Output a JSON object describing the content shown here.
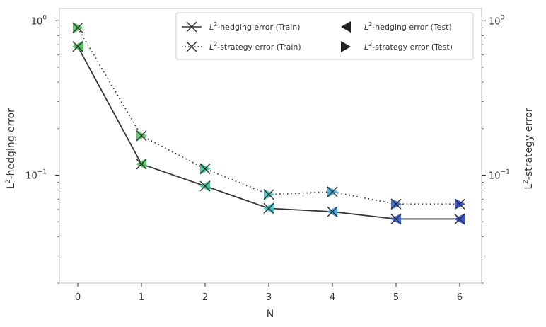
{
  "chart_data": {
    "type": "line",
    "title": "",
    "xlabel": "N",
    "ylabel_left": "L2-hedging error",
    "ylabel_right": "L2-strategy error",
    "y_scale": "log",
    "ylim": [
      0.02,
      1.2
    ],
    "x_ticks": [
      "0",
      "1",
      "2",
      "3",
      "4",
      "5",
      "6"
    ],
    "y_tick_labels": {
      "major_1": "10",
      "major_1_exp": "0",
      "major_0_1": "10",
      "major_0_1_exp": "−1"
    },
    "grid": false,
    "legend_position": "top-right",
    "x": [
      0,
      1,
      2,
      3,
      4,
      5,
      6
    ],
    "series": [
      {
        "name": "L2-hedging error (Train)",
        "style": "solid",
        "marker": "x",
        "color": "#333333",
        "values": [
          0.68,
          0.118,
          0.085,
          0.061,
          0.058,
          0.052,
          0.052
        ]
      },
      {
        "name": "L2-strategy error (Train)",
        "style": "dotted",
        "marker": "x",
        "color": "#333333",
        "values": [
          0.9,
          0.18,
          0.11,
          0.075,
          0.078,
          0.065,
          0.065
        ]
      },
      {
        "name": "L2-hedging error (Test)",
        "style": "none",
        "marker": "triangle-left",
        "color": "#333333",
        "values": [
          0.68,
          0.118,
          0.085,
          0.061,
          0.058,
          0.052,
          0.052
        ]
      },
      {
        "name": "L2-strategy error (Test)",
        "style": "none",
        "marker": "triangle-right",
        "color": "#333333",
        "values": [
          0.9,
          0.18,
          0.11,
          0.075,
          0.078,
          0.065,
          0.065
        ]
      }
    ],
    "point_colors": [
      "#3cbf4a",
      "#4dc95a",
      "#35c58c",
      "#3cc8c4",
      "#38a8e6",
      "#2e62df",
      "#2244dd"
    ],
    "legend": {
      "hedging_train": {
        "sup": "2",
        "label": "-hedging error (Train)"
      },
      "strategy_train": {
        "sup": "2",
        "label": "-strategy error (Train)"
      },
      "hedging_test": {
        "sup": "2",
        "label": "-hedging error (Test)"
      },
      "strategy_test": {
        "sup": "2",
        "label": "-strategy error (Test)"
      }
    },
    "axis_text": {
      "y_left_sup": "2",
      "y_left_rest": "-hedging error",
      "y_right_sup": "2",
      "y_right_rest": "-strategy error",
      "x": "N",
      "L": "L"
    }
  }
}
